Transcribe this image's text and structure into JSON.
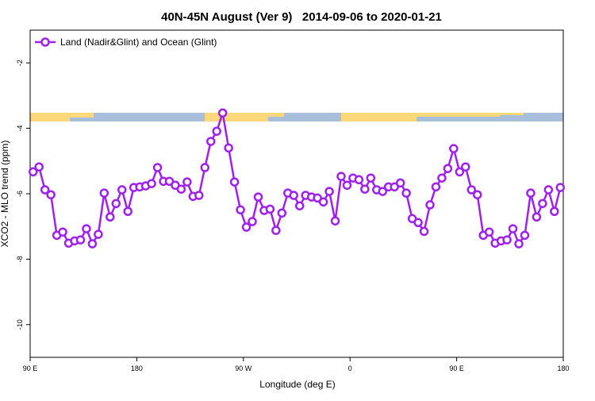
{
  "chart_data": {
    "type": "line",
    "title": "40N-45N August (Ver 9)   2014-09-06 to 2020-01-21",
    "x_label": "Longitude (deg E)",
    "y_label": "XCO2 - MLO trend (ppm)",
    "legend": "top-left",
    "xlim": [
      90,
      540
    ],
    "ylim": [
      -11,
      -1
    ],
    "xticks": [
      {
        "value": 90,
        "label": "90 E"
      },
      {
        "value": 180,
        "label": "180"
      },
      {
        "value": 270,
        "label": "90 W"
      },
      {
        "value": 360,
        "label": "0"
      },
      {
        "value": 450,
        "label": "90 E"
      },
      {
        "value": 540,
        "label": "180"
      }
    ],
    "yticks": [
      -2,
      -4,
      -6,
      -8,
      -10
    ],
    "x": [
      92.5,
      97.5,
      102.5,
      107.5,
      112.5,
      117.5,
      122.5,
      127.5,
      132.5,
      137.5,
      142.5,
      147.5,
      152.5,
      157.5,
      162.5,
      167.5,
      172.5,
      177.5,
      182.5,
      187.5,
      192.5,
      197.5,
      202.5,
      207.5,
      212.5,
      217.5,
      222.5,
      227.5,
      232.5,
      237.5,
      242.5,
      247.5,
      252.5,
      257.5,
      262.5,
      267.5,
      272.5,
      277.5,
      282.5,
      287.5,
      292.5,
      297.5,
      302.5,
      307.5,
      312.5,
      317.5,
      322.5,
      327.5,
      332.5,
      337.5,
      342.5,
      347.5,
      352.5,
      357.5,
      362.5,
      367.5,
      372.5,
      377.5,
      382.5,
      387.5,
      392.5,
      397.5,
      402.5,
      407.5,
      412.5,
      417.5,
      422.5,
      427.5,
      432.5,
      437.5,
      442.5,
      447.5,
      452.5,
      457.5,
      462.5,
      467.5,
      472.5,
      477.5,
      482.5,
      487.5,
      492.5,
      497.5,
      502.5,
      507.5,
      512.5,
      517.5,
      522.5,
      527.5,
      532.5,
      537.5
    ],
    "series": [
      {
        "name": "Land (Nadir&Glint) and Ocean (Glint)",
        "color": "#a020f0",
        "values": [
          -5.33,
          -5.18,
          -5.88,
          -6.03,
          -7.27,
          -7.17,
          -7.51,
          -7.44,
          -7.41,
          -7.07,
          -7.53,
          -7.24,
          -5.98,
          -6.71,
          -6.3,
          -5.88,
          -6.54,
          -5.81,
          -5.79,
          -5.76,
          -5.69,
          -5.2,
          -5.62,
          -5.62,
          -5.74,
          -5.86,
          -5.64,
          -6.08,
          -6.05,
          -5.2,
          -4.4,
          -4.09,
          -3.53,
          -4.6,
          -5.64,
          -6.49,
          -7.02,
          -6.85,
          -6.1,
          -6.51,
          -6.47,
          -7.12,
          -6.59,
          -5.98,
          -6.05,
          -6.37,
          -6.05,
          -6.1,
          -6.13,
          -6.25,
          -5.93,
          -6.83,
          -5.47,
          -5.74,
          -5.52,
          -5.57,
          -5.86,
          -5.52,
          -5.88,
          -5.93,
          -5.79,
          -5.79,
          -5.67,
          -5.98,
          -6.76,
          -6.88,
          -7.15,
          -6.34,
          -5.79,
          -5.52,
          -5.23,
          -4.62,
          -5.33,
          -5.18,
          -5.88,
          -6.03,
          -7.27,
          -7.17,
          -7.51,
          -7.44,
          -7.41,
          -7.07,
          -7.53,
          -7.27,
          -5.98,
          -6.71,
          -6.3,
          -5.88,
          -6.54,
          -5.81
        ]
      }
    ]
  }
}
